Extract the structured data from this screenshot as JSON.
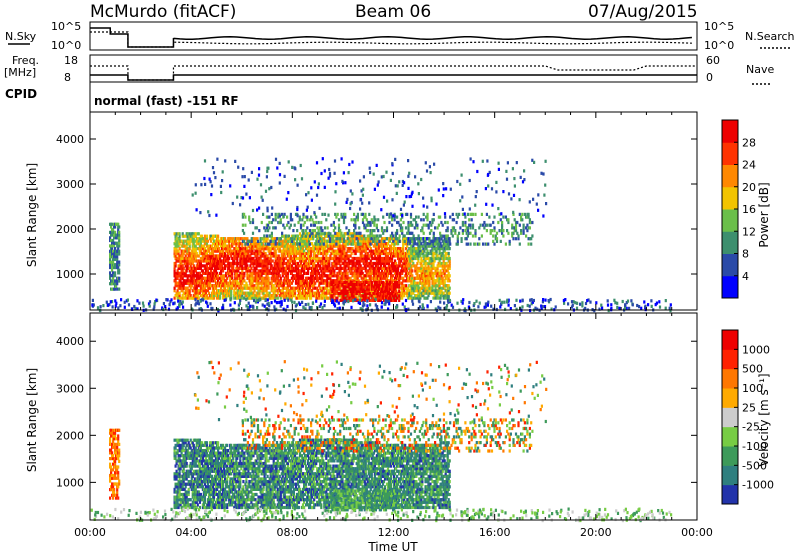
{
  "header": {
    "station": "McMurdo (fitACF)",
    "beam": "Beam 06",
    "date": "07/Aug/2015"
  },
  "noise_panel": {
    "left_label": "N.Sky",
    "right_label": "N.Search",
    "left_ticks": [
      "10^5",
      "10^0"
    ],
    "right_ticks": [
      "10^5",
      "10^0"
    ]
  },
  "freq_panel": {
    "left_label_1": "Freq.",
    "left_label_2": "[MHz]",
    "right_label": "Nave",
    "left_ticks": [
      "18",
      "8"
    ],
    "right_ticks": [
      "60",
      "0"
    ]
  },
  "cpid": {
    "label": "CPID",
    "value": "normal (fast) -151 RF"
  },
  "chart_data": [
    {
      "type": "heatmap",
      "name": "power",
      "ylabel": "Slant Range [km]",
      "ylim": [
        200,
        4600
      ],
      "yticks": [
        "1000",
        "2000",
        "3000",
        "4000"
      ],
      "colorbar_label": "Power [dB]",
      "colorbar_ticks": [
        "4",
        "8",
        "12",
        "16",
        "20",
        "24",
        "28"
      ],
      "colorbar_range": [
        0,
        32
      ],
      "colors": [
        "#0000ff",
        "#2a4aa8",
        "#3d8f6e",
        "#6bbf4a",
        "#f2c400",
        "#ff8800",
        "#ff3300",
        "#ee0000"
      ],
      "echo_regions_hours_km": [
        {
          "t0": 0.75,
          "t1": 1.1,
          "r0": 700,
          "r1": 2200,
          "level": 2
        },
        {
          "t0": 3.3,
          "t1": 14.2,
          "r0": 600,
          "r1": 1900,
          "level": 5
        },
        {
          "t0": 6.0,
          "t1": 17.5,
          "r0": 1600,
          "r1": 2400,
          "level": 2
        },
        {
          "t0": 9.5,
          "t1": 12.2,
          "r0": 500,
          "r1": 1200,
          "level": 7
        }
      ]
    },
    {
      "type": "heatmap",
      "name": "velocity",
      "ylabel": "Slant Range [km]",
      "xlabel": "Time UT",
      "ylim": [
        200,
        4600
      ],
      "yticks": [
        "1000",
        "2000",
        "3000",
        "4000"
      ],
      "xticks": [
        "00:00",
        "04:00",
        "08:00",
        "12:00",
        "16:00",
        "20:00",
        "00:00"
      ],
      "xlim_hours": [
        0,
        24
      ],
      "colorbar_label": "Velocity [m s⁻¹]",
      "colorbar_ticks": [
        "1000",
        "500",
        "100",
        "25",
        "-25",
        "-100",
        "-500",
        "-1000"
      ],
      "colors": [
        "#2233aa",
        "#2f7f7f",
        "#3d9a5a",
        "#77cc44",
        "#cccccc",
        "#ffaa00",
        "#ff7700",
        "#ff2200",
        "#ee0000"
      ]
    }
  ]
}
